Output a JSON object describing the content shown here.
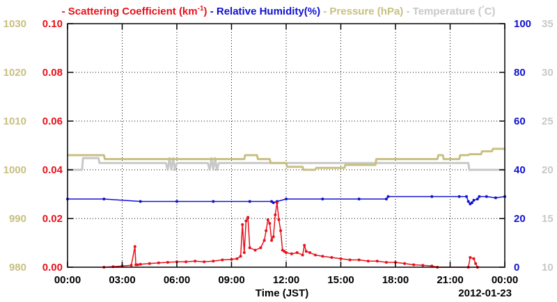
{
  "colors": {
    "scattering": "#e8101a",
    "humidity": "#1010d0",
    "pressure": "#c8bf80",
    "temperature": "#c8c8c8",
    "axis": "#000000",
    "grid": "#000000",
    "background": "#ffffff"
  },
  "legend": {
    "items": [
      {
        "dash": "-",
        "text": "Scattering Coefficient (km",
        "sup": "-1",
        "close": ")",
        "color_key": "scattering"
      },
      {
        "dash": "-",
        "text": "Relative Humidity(%)",
        "color_key": "humidity"
      },
      {
        "dash": "-",
        "text": "Pressure (hPa)",
        "color_key": "pressure"
      },
      {
        "dash": "-",
        "text": "Temperature (",
        "sup": "°",
        "close": "C)",
        "color_key": "temperature"
      }
    ]
  },
  "chart_data": {
    "type": "line",
    "xlabel": "Time (JST)",
    "date_label": "2012-01-23",
    "x_ticks": [
      "00:00",
      "03:00",
      "06:00",
      "09:00",
      "12:00",
      "15:00",
      "18:00",
      "21:00",
      "00:00"
    ],
    "xlim": [
      0,
      24
    ],
    "grid": true,
    "axes": {
      "pressure": {
        "side": "left-outer",
        "ylim": [
          980,
          1030
        ],
        "ticks": [
          "980",
          "990",
          "1000",
          "1010",
          "1020",
          "1030"
        ]
      },
      "scattering": {
        "side": "left-inner",
        "ylim": [
          0.0,
          0.1
        ],
        "ticks": [
          "0.00",
          "0.02",
          "0.04",
          "0.06",
          "0.08",
          "0.10"
        ]
      },
      "humidity": {
        "side": "right-inner",
        "ylim": [
          0,
          100
        ],
        "ticks": [
          "0",
          "20",
          "40",
          "60",
          "80",
          "100"
        ]
      },
      "temperature": {
        "side": "right-outer",
        "ylim": [
          10,
          35
        ],
        "ticks": [
          "10",
          "15",
          "20",
          "25",
          "30",
          "35"
        ]
      }
    },
    "series": [
      {
        "name": "Scattering Coefficient (km-1)",
        "axis": "scattering",
        "x": [
          2.0,
          2.5,
          3.0,
          3.5,
          3.7,
          3.75,
          3.85,
          4.0,
          4.5,
          5.0,
          5.5,
          6.0,
          6.5,
          7.0,
          7.5,
          8.0,
          8.5,
          9.0,
          9.3,
          9.5,
          9.6,
          9.7,
          9.8,
          9.9,
          10.0,
          10.3,
          10.6,
          10.8,
          10.9,
          11.0,
          11.1,
          11.2,
          11.3,
          11.4,
          11.5,
          11.6,
          11.7,
          11.8,
          11.9,
          12.0,
          12.3,
          12.6,
          12.9,
          13.0,
          13.1,
          13.3,
          13.6,
          14.0,
          14.5,
          15.0,
          15.5,
          16.0,
          16.5,
          17.0,
          17.5,
          18.0,
          18.5,
          19.0,
          19.5,
          20.0,
          20.3,
          22.0,
          22.1,
          22.3,
          22.4,
          22.5
        ],
        "values": [
          0.0,
          0.0002,
          0.0005,
          0.0008,
          0.0085,
          0.001,
          0.001,
          0.0012,
          0.0015,
          0.0018,
          0.002,
          0.0022,
          0.0022,
          0.0025,
          0.0022,
          0.0025,
          0.003,
          0.0032,
          0.0035,
          0.0045,
          0.0175,
          0.006,
          0.019,
          0.0205,
          0.008,
          0.007,
          0.008,
          0.011,
          0.015,
          0.0195,
          0.018,
          0.011,
          0.0125,
          0.0215,
          0.0265,
          0.0195,
          0.015,
          0.007,
          0.0065,
          0.006,
          0.0055,
          0.006,
          0.005,
          0.009,
          0.0065,
          0.006,
          0.005,
          0.0045,
          0.004,
          0.0035,
          0.003,
          0.003,
          0.0025,
          0.0025,
          0.002,
          0.002,
          0.0015,
          0.001,
          0.0008,
          0.0005,
          0.0,
          0.0,
          0.004,
          0.0035,
          0.0015,
          0.0
        ]
      },
      {
        "name": "Relative Humidity(%)",
        "axis": "humidity",
        "x": [
          0.0,
          2.0,
          4.0,
          6.0,
          8.0,
          10.0,
          11.2,
          11.3,
          11.5,
          12.0,
          14.0,
          16.0,
          17.5,
          17.6,
          20.0,
          21.5,
          21.9,
          22.0,
          22.1,
          22.2,
          22.3,
          22.5,
          22.6,
          23.0,
          23.5,
          24.0
        ],
        "values": [
          28,
          28,
          27,
          27,
          27,
          27,
          27,
          26.5,
          27,
          28,
          28,
          28,
          28,
          29,
          29,
          29,
          29,
          27,
          26,
          26.5,
          27.5,
          28,
          29,
          29,
          28.5,
          29
        ]
      },
      {
        "name": "Pressure (hPa)",
        "axis": "pressure",
        "x": [
          0.0,
          2.0,
          2.05,
          9.7,
          9.75,
          10.4,
          10.45,
          11.1,
          11.15,
          12.0,
          12.05,
          12.9,
          12.95,
          13.6,
          13.65,
          15.2,
          15.25,
          16.9,
          16.95,
          20.3,
          20.35,
          20.6,
          20.65,
          21.5,
          21.55,
          22.0,
          22.05,
          22.7,
          22.75,
          23.3,
          23.35,
          24.0
        ],
        "values": [
          1003,
          1003,
          1002.2,
          1002.2,
          1003,
          1003,
          1002.2,
          1002.2,
          1001.4,
          1001.4,
          1000.6,
          1000.6,
          1000,
          1000,
          1000.4,
          1000.4,
          1001,
          1001,
          1002.2,
          1002.2,
          1003,
          1003,
          1002.2,
          1002.2,
          1003,
          1003,
          1003.2,
          1003.2,
          1003.8,
          1003.8,
          1004.3,
          1004.3
        ]
      },
      {
        "name": "Temperature (C)",
        "axis": "temperature",
        "x": [
          0.0,
          0.8,
          0.85,
          1.7,
          1.75,
          5.4,
          5.5,
          5.6,
          5.7,
          5.8,
          5.9,
          6.0,
          6.1,
          7.7,
          7.8,
          7.9,
          8.0,
          8.1,
          8.2,
          8.3,
          22.0,
          22.05,
          24.0
        ],
        "values": [
          20,
          20,
          21.2,
          21.2,
          20.7,
          20.7,
          20,
          21.2,
          20,
          21.2,
          20,
          20.7,
          20.7,
          20.7,
          20,
          21.2,
          20,
          21.2,
          20,
          20.7,
          20.7,
          20,
          20
        ]
      }
    ]
  }
}
